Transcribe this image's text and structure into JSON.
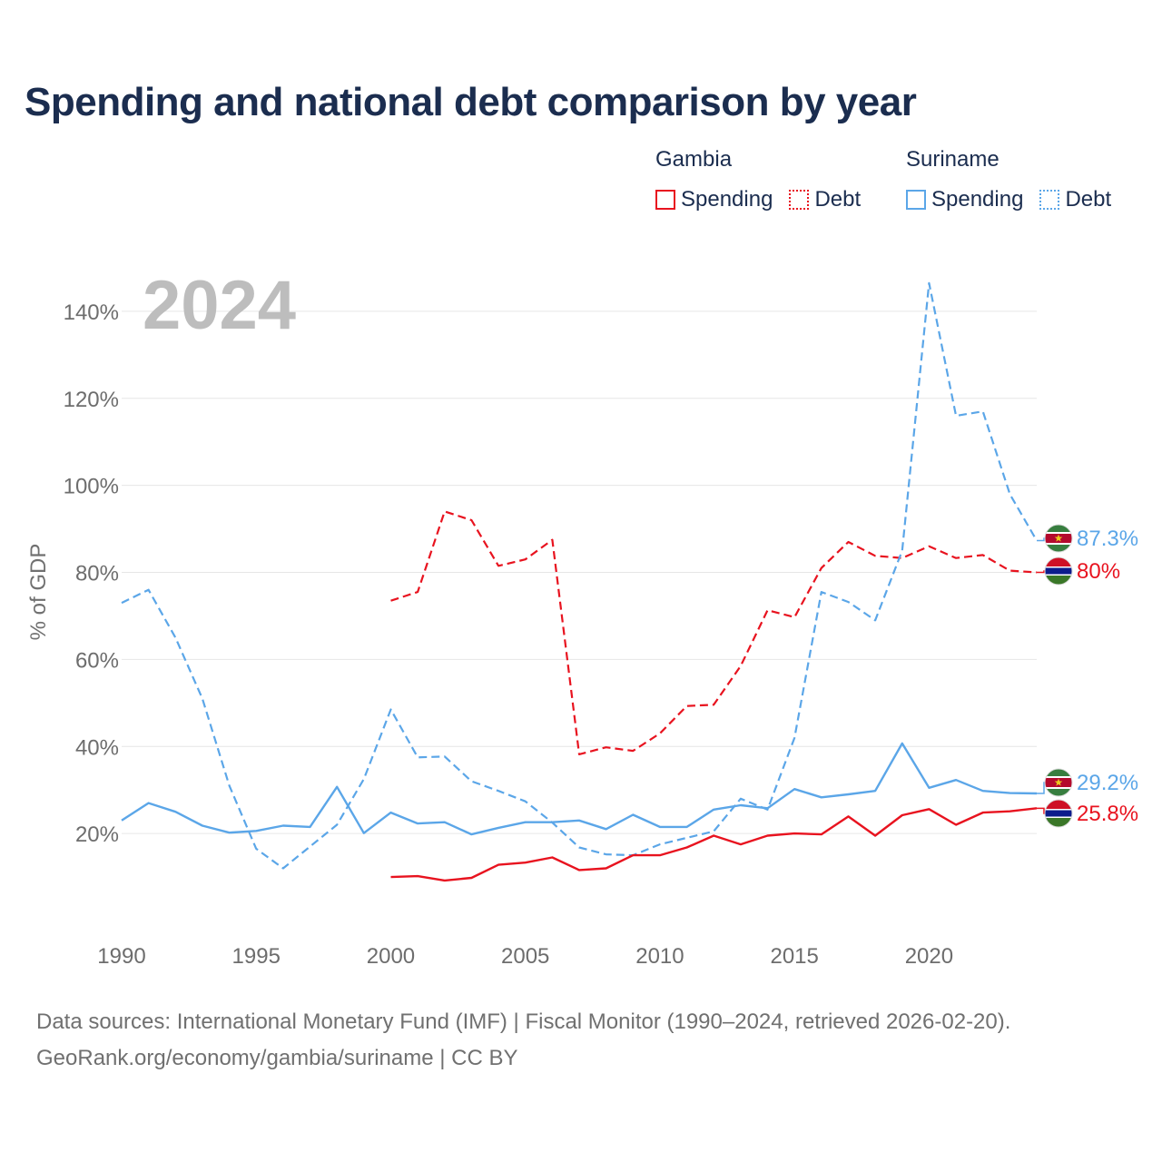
{
  "title": "Spending and national debt comparison by year",
  "legend": {
    "countries": [
      {
        "name": "Gambia",
        "spending_label": "Spending",
        "debt_label": "Debt",
        "color": "#e8131f"
      },
      {
        "name": "Suriname",
        "spending_label": "Spending",
        "debt_label": "Debt",
        "color": "#5ba6e8"
      }
    ]
  },
  "footer": {
    "line1": "Data sources: International Monetary Fund (IMF) | Fiscal Monitor (1990–2024, retrieved 2026-02-20).",
    "line2": "GeoRank.org/economy/gambia/suriname | CC BY"
  },
  "chart_data": {
    "type": "line",
    "year_label": "2024",
    "ylabel": "% of GDP",
    "xlim": [
      1990,
      2024
    ],
    "ylim": [
      0,
      150
    ],
    "xticks": [
      1990,
      1995,
      2000,
      2005,
      2010,
      2015,
      2020
    ],
    "xtick_labels": [
      "1990",
      "1995",
      "2000",
      "2005",
      "2010",
      "2015",
      "2020"
    ],
    "yticks": [
      20,
      40,
      60,
      80,
      100,
      120,
      140
    ],
    "ytick_labels": [
      "20%",
      "40%",
      "60%",
      "80%",
      "100%",
      "120%",
      "140%"
    ],
    "grid": true,
    "series": [
      {
        "name": "Gambia Debt",
        "country": "Gambia",
        "kind": "debt",
        "color": "#e8131f",
        "dashed": true,
        "x": [
          2000,
          2001,
          2002,
          2003,
          2004,
          2005,
          2006,
          2007,
          2008,
          2009,
          2010,
          2011,
          2012,
          2013,
          2014,
          2015,
          2016,
          2017,
          2018,
          2019,
          2020,
          2021,
          2022,
          2023,
          2024
        ],
        "values": [
          73.5,
          75.5,
          94,
          92,
          81.5,
          83,
          87.5,
          38.2,
          39.8,
          39,
          43,
          49.3,
          49.6,
          58.5,
          71.3,
          69.7,
          81,
          87,
          83.8,
          83.3,
          86,
          83.3,
          84,
          80.4,
          80
        ],
        "end_label": "80%"
      },
      {
        "name": "Suriname Debt",
        "country": "Suriname",
        "kind": "debt",
        "color": "#5ba6e8",
        "dashed": true,
        "x": [
          1990,
          1991,
          1992,
          1993,
          1994,
          1995,
          1996,
          1997,
          1998,
          1999,
          2000,
          2001,
          2002,
          2003,
          2004,
          2005,
          2006,
          2007,
          2008,
          2009,
          2010,
          2011,
          2012,
          2013,
          2014,
          2015,
          2016,
          2017,
          2018,
          2019,
          2020,
          2021,
          2022,
          2023,
          2024
        ],
        "values": [
          73,
          76,
          65,
          51,
          31,
          16.5,
          12,
          17,
          22,
          32.5,
          48.5,
          37.5,
          37.7,
          32,
          29.8,
          27.4,
          22.5,
          16.8,
          15.2,
          15,
          17.5,
          19,
          20.5,
          28,
          25.5,
          42,
          75.5,
          73.2,
          69,
          85,
          146.5,
          116,
          117,
          98,
          87.3
        ],
        "end_label": "87.3%"
      },
      {
        "name": "Gambia Spending",
        "country": "Gambia",
        "kind": "spending",
        "color": "#e8131f",
        "dashed": false,
        "x": [
          2000,
          2001,
          2002,
          2003,
          2004,
          2005,
          2006,
          2007,
          2008,
          2009,
          2010,
          2011,
          2012,
          2013,
          2014,
          2015,
          2016,
          2017,
          2018,
          2019,
          2020,
          2021,
          2022,
          2023,
          2024
        ],
        "values": [
          10,
          10.2,
          9.2,
          9.8,
          12.8,
          13.3,
          14.5,
          11.6,
          12,
          15,
          15,
          16.8,
          19.5,
          17.5,
          19.5,
          20,
          19.8,
          23.9,
          19.5,
          24.2,
          25.6,
          22,
          24.8,
          25.1,
          25.8
        ],
        "end_label": "25.8%"
      },
      {
        "name": "Suriname Spending",
        "country": "Suriname",
        "kind": "spending",
        "color": "#5ba6e8",
        "dashed": false,
        "x": [
          1990,
          1991,
          1992,
          1993,
          1994,
          1995,
          1996,
          1997,
          1998,
          1999,
          2000,
          2001,
          2002,
          2003,
          2004,
          2005,
          2006,
          2007,
          2008,
          2009,
          2010,
          2011,
          2012,
          2013,
          2014,
          2015,
          2016,
          2017,
          2018,
          2019,
          2020,
          2021,
          2022,
          2023,
          2024
        ],
        "values": [
          23,
          27,
          25,
          21.8,
          20.2,
          20.6,
          21.8,
          21.5,
          30.7,
          20.1,
          24.8,
          22.3,
          22.6,
          19.8,
          21.3,
          22.6,
          22.6,
          23,
          21,
          24.3,
          21.5,
          21.5,
          25.5,
          26.5,
          25.8,
          30.2,
          28.3,
          29,
          29.8,
          40.7,
          30.5,
          32.3,
          29.8,
          29.3,
          29.2
        ],
        "end_label": "29.2%"
      }
    ]
  }
}
